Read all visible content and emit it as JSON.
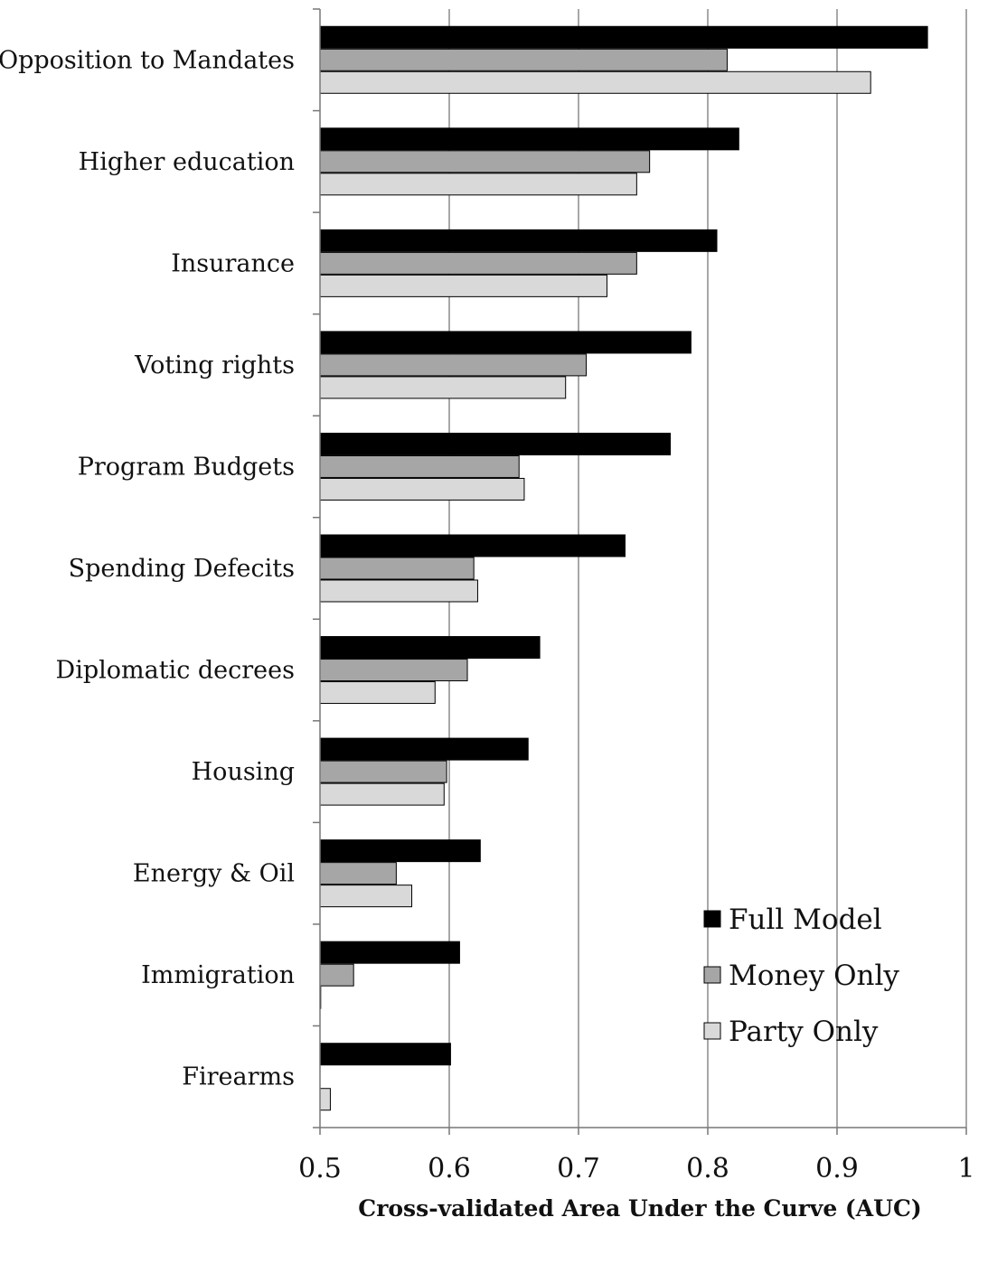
{
  "chart_data": {
    "type": "bar",
    "orientation": "horizontal",
    "title": "",
    "xlabel": "Cross-validated Area Under the Curve (AUC)",
    "ylabel": "",
    "xlim": [
      0.5,
      1
    ],
    "xticks": [
      "0.5",
      "0.6",
      "0.7",
      "0.8",
      "0.9",
      "1"
    ],
    "grid": "vertical",
    "legend_position": "bottom-right",
    "categories": [
      "Opposition to Mandates",
      "Higher education",
      "Insurance",
      "Voting rights",
      "Program Budgets",
      "Spending Defecits",
      "Diplomatic decrees",
      "Housing",
      "Energy & Oil",
      "Immigration",
      "Firearms"
    ],
    "series": [
      {
        "name": "Full Model",
        "color": "#000000",
        "values": [
          0.97,
          0.824,
          0.807,
          0.787,
          0.771,
          0.736,
          0.67,
          0.661,
          0.624,
          0.608,
          0.601
        ]
      },
      {
        "name": "Money Only",
        "color": "#a6a6a6",
        "values": [
          0.815,
          0.755,
          0.745,
          0.706,
          0.654,
          0.619,
          0.614,
          0.598,
          0.559,
          0.526,
          null
        ]
      },
      {
        "name": "Party Only",
        "color": "#d9d9d9",
        "values": [
          0.926,
          0.745,
          0.722,
          0.69,
          0.658,
          0.622,
          0.589,
          0.596,
          0.571,
          0.5,
          0.508
        ]
      }
    ]
  }
}
